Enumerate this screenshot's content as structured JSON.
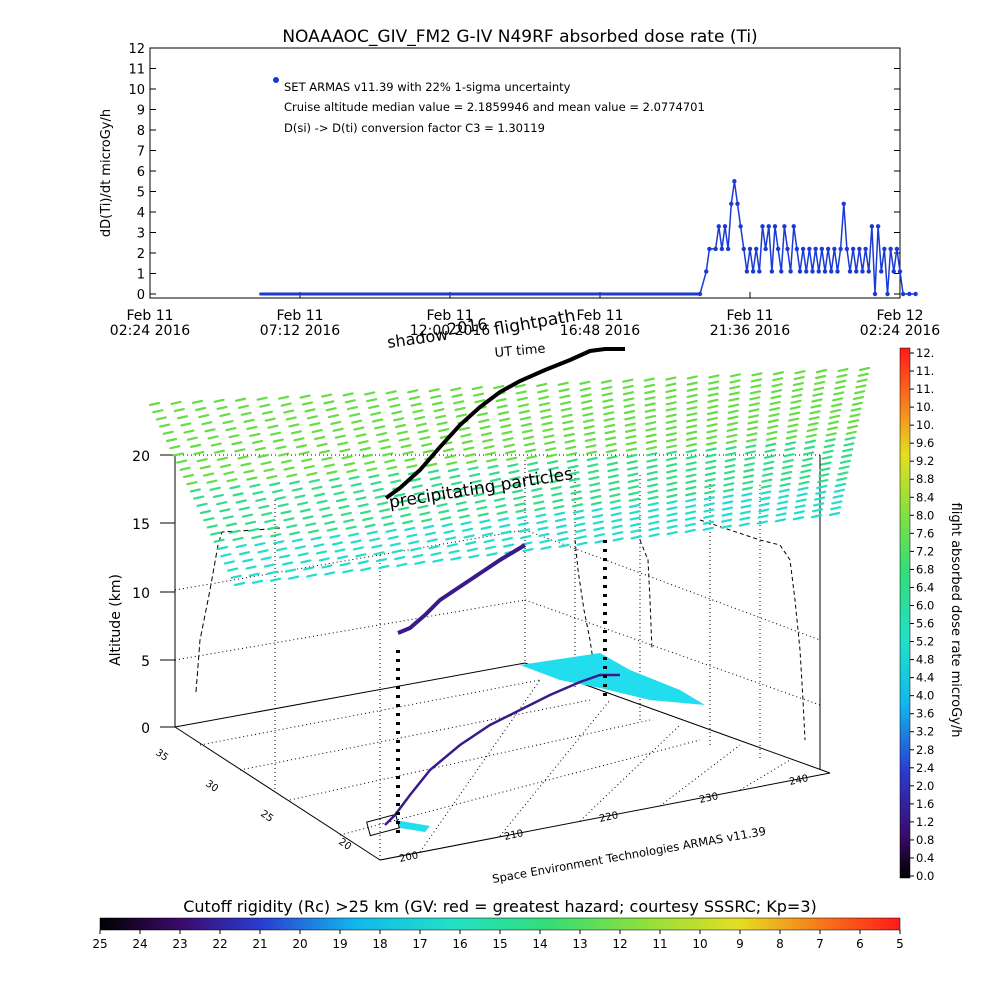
{
  "chart_data": [
    {
      "type": "line",
      "title": "NOAAAOC_GIV_FM2 G-IV    N49RF  absorbed dose rate (Ti)",
      "ylabel": "dD(Ti)/dt microGy/h",
      "ylim": [
        0,
        12
      ],
      "yticks": [
        "0",
        "1",
        "2",
        "3",
        "4",
        "5",
        "6",
        "7",
        "8",
        "9",
        "10",
        "11",
        "12"
      ],
      "xticks": [
        {
          "line1": "Feb 11",
          "line2": "02:24 2016"
        },
        {
          "line1": "Feb 11",
          "line2": "07:12 2016"
        },
        {
          "line1": "Feb 11",
          "line2": "12:00 2016"
        },
        {
          "line1": "Feb 11",
          "line2": "16:48 2016"
        },
        {
          "line1": "Feb 11",
          "line2": "21:36 2016"
        },
        {
          "line1": "Feb 12",
          "line2": "02:24 2016"
        }
      ],
      "x_hours_range": [
        0,
        24
      ],
      "annotations": [
        "SET ARMAS v11.39 with 22% 1-sigma uncertainty",
        "Cruise altitude median value = 2.1859946 and mean value = 2.0774701",
        "D(si) -> D(ti) conversion factor C3 = 1.30119"
      ],
      "series": [
        {
          "color": "#1a3ad6",
          "baseline_x": [
            3.5,
            17.6
          ],
          "points": [
            [
              17.6,
              0
            ],
            [
              17.8,
              1.1
            ],
            [
              17.9,
              2.2
            ],
            [
              18.1,
              2.2
            ],
            [
              18.2,
              3.3
            ],
            [
              18.3,
              2.2
            ],
            [
              18.4,
              3.3
            ],
            [
              18.5,
              2.2
            ],
            [
              18.6,
              4.4
            ],
            [
              18.7,
              5.5
            ],
            [
              18.8,
              4.4
            ],
            [
              18.9,
              3.3
            ],
            [
              19.0,
              2.2
            ],
            [
              19.1,
              1.1
            ],
            [
              19.2,
              2.2
            ],
            [
              19.3,
              1.1
            ],
            [
              19.4,
              2.2
            ],
            [
              19.5,
              1.1
            ],
            [
              19.6,
              3.3
            ],
            [
              19.7,
              2.2
            ],
            [
              19.8,
              3.3
            ],
            [
              19.9,
              1.1
            ],
            [
              20.0,
              3.3
            ],
            [
              20.1,
              2.2
            ],
            [
              20.2,
              1.1
            ],
            [
              20.3,
              3.3
            ],
            [
              20.4,
              2.2
            ],
            [
              20.5,
              1.1
            ],
            [
              20.6,
              3.3
            ],
            [
              20.7,
              2.2
            ],
            [
              20.8,
              1.1
            ],
            [
              20.9,
              2.2
            ],
            [
              21.0,
              1.1
            ],
            [
              21.1,
              2.2
            ],
            [
              21.2,
              1.1
            ],
            [
              21.3,
              2.2
            ],
            [
              21.4,
              1.1
            ],
            [
              21.5,
              2.2
            ],
            [
              21.6,
              1.1
            ],
            [
              21.7,
              2.2
            ],
            [
              21.8,
              1.1
            ],
            [
              21.9,
              2.2
            ],
            [
              22.0,
              1.1
            ],
            [
              22.1,
              2.2
            ],
            [
              22.2,
              4.4
            ],
            [
              22.3,
              2.2
            ],
            [
              22.4,
              1.1
            ],
            [
              22.5,
              2.2
            ],
            [
              22.6,
              1.1
            ],
            [
              22.7,
              2.2
            ],
            [
              22.8,
              1.1
            ],
            [
              22.9,
              2.2
            ],
            [
              23.0,
              1.1
            ],
            [
              23.1,
              3.3
            ],
            [
              23.2,
              0
            ],
            [
              23.3,
              3.3
            ],
            [
              23.4,
              1.1
            ],
            [
              23.5,
              2.2
            ],
            [
              23.6,
              0
            ],
            [
              23.7,
              2.2
            ],
            [
              23.8,
              1.1
            ],
            [
              23.9,
              2.2
            ],
            [
              24.0,
              1.1
            ],
            [
              24.1,
              0
            ],
            [
              24.3,
              0
            ],
            [
              24.5,
              0
            ]
          ]
        }
      ]
    },
    {
      "type": "scatter",
      "description_labels": {
        "flightpath": "flightpath",
        "shadow": "shadow",
        "date_overlap": "2016",
        "ut": "UT time",
        "precip": "precipitating particles",
        "credit": "Space Environment Technologies ARMAS v11.39"
      },
      "zlabel": "Altitude (km)",
      "zlim": [
        0,
        20
      ],
      "zticks": [
        "0",
        "5",
        "10",
        "15",
        "20"
      ],
      "lat_ticks": [
        "20",
        "25",
        "30",
        "35"
      ],
      "lon_ticks": [
        "200",
        "210",
        "220",
        "230",
        "240"
      ]
    }
  ],
  "colorbar_right": {
    "label": "flight absorbed dose rate microGy/h",
    "ticks": [
      "12.",
      "11.",
      "11.",
      "10.",
      "10.",
      "9.6",
      "9.2",
      "8.8",
      "8.4",
      "8.0",
      "7.6",
      "7.2",
      "6.8",
      "6.4",
      "6.0",
      "5.6",
      "5.2",
      "4.8",
      "4.4",
      "4.0",
      "3.6",
      "3.2",
      "2.8",
      "2.4",
      "2.0",
      "1.6",
      "1.2",
      "0.8",
      "0.4",
      "0.0"
    ]
  },
  "colorbar_bottom": {
    "label": "Cutoff rigidity (Rc) >25 km (GV: red = greatest hazard; courtesy SSSRC; Kp=3)",
    "ticks": [
      "25",
      "24",
      "23",
      "22",
      "21",
      "20",
      "19",
      "18",
      "17",
      "16",
      "15",
      "14",
      "13",
      "12",
      "11",
      "10",
      "9",
      "8",
      "7",
      "6",
      "5"
    ]
  },
  "colors": {
    "series_blue": "#1a3ad6",
    "flight_black": "#000000",
    "shadow_purple": "#3a1a8a",
    "precip_green": "#66dd55",
    "cyan_patch": "#22ddee"
  }
}
